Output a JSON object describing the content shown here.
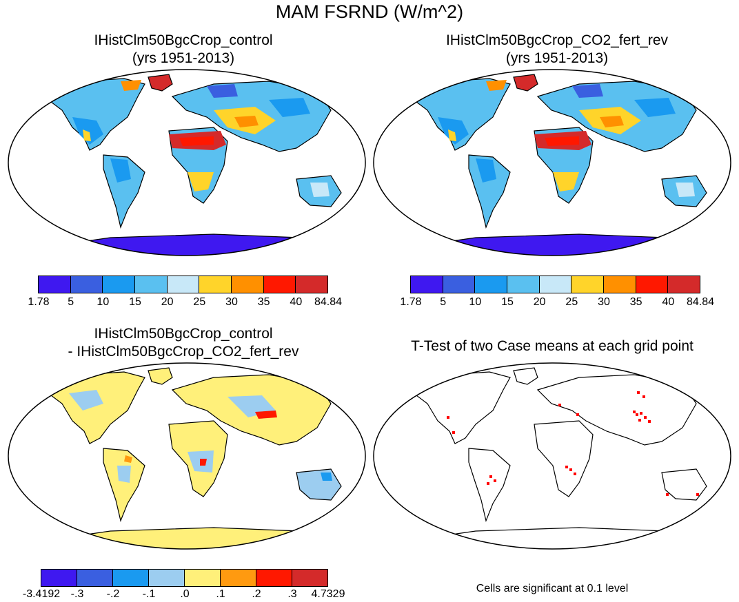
{
  "figure_title": "MAM FSRND (W/m^2)",
  "panels": {
    "p1": {
      "title_line1": "IHistClm50BgcCrop_control",
      "title_line2": "(yrs 1951-2013)"
    },
    "p2": {
      "title_line1": "IHistClm50BgcCrop_CO2_fert_rev",
      "title_line2": "(yrs 1951-2013)"
    },
    "p3": {
      "title_line1": "IHistClm50BgcCrop_control",
      "title_line2": "- IHistClm50BgcCrop_CO2_fert_rev"
    },
    "p4": {
      "title_line1": "T-Test of two Case means at each grid point",
      "note": "Cells are significant at 0.1 level"
    }
  },
  "colorbars": {
    "abs": {
      "colors": [
        "#3f18f0",
        "#3a5fe0",
        "#1a9af0",
        "#5ac0f0",
        "#c8e8f8",
        "#ffd42a",
        "#ff9000",
        "#ff1800",
        "#d42a2a"
      ],
      "labels": [
        "1.78",
        "5",
        "10",
        "15",
        "20",
        "25",
        "30",
        "35",
        "40",
        "84.84"
      ]
    },
    "diff": {
      "colors": [
        "#3f18f0",
        "#3a5fe0",
        "#1a9af0",
        "#9ccdf0",
        "#fff07a",
        "#ff9a10",
        "#ff1800",
        "#d42a2a"
      ],
      "labels": [
        "-3.4192",
        "-.3",
        "-.2",
        "-.1",
        ".0",
        ".1",
        ".2",
        ".3",
        "4.7329"
      ]
    }
  },
  "map_colors": {
    "ocean": "#ffffff",
    "outline": "#000000",
    "sig_cells": "#ff0000"
  }
}
